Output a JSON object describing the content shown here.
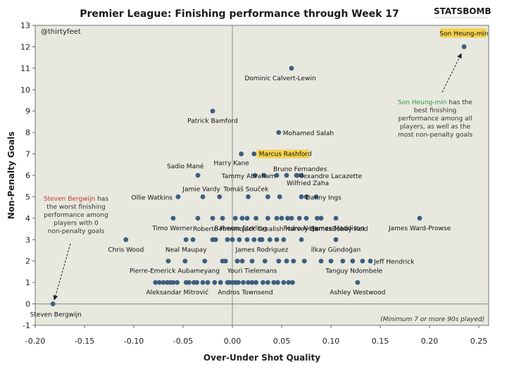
{
  "header": {
    "title": "Premier League: Finishing performance through Week 17",
    "brand": "STATSBOMB"
  },
  "handle": "@thirtyfeet",
  "footnote": "(Minimum 7 or more 90s played)",
  "colors": {
    "background": "#e8e8df",
    "point": "#3d5e80",
    "highlight": "#f5d24c",
    "good_name": "#2e9b4a",
    "bad_name": "#c0392b"
  },
  "annotations": {
    "best": {
      "name": "Son Heung-min",
      "rest": [
        " has the",
        "best finishing",
        "performance among all",
        "players, as well as the",
        "most non-penalty goals"
      ]
    },
    "worst": {
      "name": "Steven Bergwijn",
      "rest": [
        " has",
        "the worst finishing",
        "performance among",
        "players with 0",
        "non-penalty goals"
      ]
    }
  },
  "chart_data": {
    "type": "scatter",
    "xlabel": "Over-Under Shot Quality",
    "ylabel": "Non-Penalty Goals",
    "xlim": [
      -0.2,
      0.26
    ],
    "ylim": [
      -1,
      13
    ],
    "xticks": [
      "-0.20",
      "-0.15",
      "-0.10",
      "-0.05",
      "0.00",
      "0.05",
      "0.10",
      "0.15",
      "0.20",
      "0.25"
    ],
    "yticks": [
      "-1",
      "0",
      "1",
      "2",
      "3",
      "4",
      "5",
      "6",
      "7",
      "8",
      "9",
      "10",
      "11",
      "12",
      "13"
    ],
    "grid": false,
    "labeled_points": [
      {
        "label": "Son Heung-min",
        "x": 0.235,
        "y": 12
      },
      {
        "label": "Dominic Calvert-Lewin",
        "x": 0.06,
        "y": 11
      },
      {
        "label": "Patrick Bamford",
        "x": -0.02,
        "y": 9
      },
      {
        "label": "Mohamed Salah",
        "x": 0.047,
        "y": 8
      },
      {
        "label": "Marcus Rashford",
        "x": 0.022,
        "y": 7
      },
      {
        "label": "Harry Kane",
        "x": 0.009,
        "y": 7
      },
      {
        "label": "Bruno Fernandes",
        "x": 0.055,
        "y": 6
      },
      {
        "label": "Sadio Mané",
        "x": -0.035,
        "y": 6
      },
      {
        "label": "Tammy Abraham",
        "x": 0.032,
        "y": 6
      },
      {
        "label": "Alexandre Lacazette",
        "x": 0.07,
        "y": 6
      },
      {
        "label": "Wilfried Zaha",
        "x": 0.065,
        "y": 6
      },
      {
        "label": "Jamie Vardy",
        "x": -0.03,
        "y": 5
      },
      {
        "label": "Tomáš Souček",
        "x": 0.016,
        "y": 5
      },
      {
        "label": "Ollie Watkins",
        "x": -0.055,
        "y": 5
      },
      {
        "label": "Danny Ings",
        "x": 0.07,
        "y": 5
      },
      {
        "label": "Roberto Firmino",
        "x": -0.01,
        "y": 4
      },
      {
        "label": "Jack Grealish",
        "x": 0.036,
        "y": 4
      },
      {
        "label": "Harvey Barnes",
        "x": 0.068,
        "y": 4
      },
      {
        "label": "Bobby Reid",
        "x": 0.105,
        "y": 4
      },
      {
        "label": "Timo Werner",
        "x": -0.06,
        "y": 4
      },
      {
        "label": "Raheem Sterling",
        "x": 0.003,
        "y": 4
      },
      {
        "label": "Pedro Neto",
        "x": 0.056,
        "y": 4
      },
      {
        "label": "James Maddison",
        "x": 0.086,
        "y": 4
      },
      {
        "label": "James Ward-Prowse",
        "x": 0.19,
        "y": 4
      },
      {
        "label": "Chris Wood",
        "x": -0.108,
        "y": 3
      },
      {
        "label": "Neal Maupay",
        "x": -0.047,
        "y": 3
      },
      {
        "label": "James Rodriguez",
        "x": 0.03,
        "y": 3
      },
      {
        "label": "İlkay Gündoğan",
        "x": 0.105,
        "y": 3
      },
      {
        "label": "Pierre-Emerick Aubameyang",
        "x": -0.065,
        "y": 2
      },
      {
        "label": "Youri Tielemans",
        "x": 0.02,
        "y": 2
      },
      {
        "label": "Tanguy Ndombele",
        "x": 0.122,
        "y": 2
      },
      {
        "label": "Jeff Hendrick",
        "x": 0.14,
        "y": 2
      },
      {
        "label": "Aleksandar Mitrović",
        "x": -0.063,
        "y": 1
      },
      {
        "label": "Andros Townsend",
        "x": 0.016,
        "y": 1
      },
      {
        "label": "Ashley Westwood",
        "x": 0.127,
        "y": 1
      },
      {
        "label": "Steven Bergwijn",
        "x": -0.182,
        "y": 0
      }
    ],
    "unlabeled_points": [
      [
        -0.048,
        2
      ],
      [
        -0.028,
        2
      ],
      [
        -0.01,
        2
      ],
      [
        -0.007,
        2
      ],
      [
        0.005,
        2
      ],
      [
        0.01,
        2
      ],
      [
        0.033,
        2
      ],
      [
        0.047,
        2
      ],
      [
        0.055,
        2
      ],
      [
        0.062,
        2
      ],
      [
        0.073,
        2
      ],
      [
        0.09,
        2
      ],
      [
        0.1,
        2
      ],
      [
        0.112,
        2
      ],
      [
        0.132,
        2
      ],
      [
        -0.078,
        1
      ],
      [
        -0.074,
        1
      ],
      [
        -0.07,
        1
      ],
      [
        -0.066,
        1
      ],
      [
        -0.06,
        1
      ],
      [
        -0.056,
        1
      ],
      [
        -0.047,
        1
      ],
      [
        -0.044,
        1
      ],
      [
        -0.039,
        1
      ],
      [
        -0.036,
        1
      ],
      [
        -0.03,
        1
      ],
      [
        -0.025,
        1
      ],
      [
        -0.018,
        1
      ],
      [
        -0.012,
        1
      ],
      [
        -0.005,
        1
      ],
      [
        -0.003,
        1
      ],
      [
        0.0,
        1
      ],
      [
        0.003,
        1
      ],
      [
        0.006,
        1
      ],
      [
        0.011,
        1
      ],
      [
        0.02,
        1
      ],
      [
        0.024,
        1
      ],
      [
        0.031,
        1
      ],
      [
        0.036,
        1
      ],
      [
        0.042,
        1
      ],
      [
        0.046,
        1
      ],
      [
        0.052,
        1
      ],
      [
        0.057,
        1
      ],
      [
        0.061,
        1
      ],
      [
        -0.04,
        3
      ],
      [
        -0.02,
        3
      ],
      [
        -0.017,
        3
      ],
      [
        -0.005,
        3
      ],
      [
        0.0,
        3
      ],
      [
        0.007,
        3
      ],
      [
        0.015,
        3
      ],
      [
        0.022,
        3
      ],
      [
        0.028,
        3
      ],
      [
        0.038,
        3
      ],
      [
        0.045,
        3
      ],
      [
        0.052,
        3
      ],
      [
        0.07,
        3
      ],
      [
        -0.035,
        4
      ],
      [
        -0.02,
        4
      ],
      [
        0.01,
        4
      ],
      [
        0.015,
        4
      ],
      [
        0.024,
        4
      ],
      [
        0.045,
        4
      ],
      [
        0.05,
        4
      ],
      [
        0.06,
        4
      ],
      [
        0.075,
        4
      ],
      [
        0.09,
        4
      ],
      [
        -0.013,
        5
      ],
      [
        0.036,
        5
      ],
      [
        0.048,
        5
      ],
      [
        0.075,
        5
      ],
      [
        0.085,
        5
      ],
      [
        0.023,
        6
      ],
      [
        0.045,
        6
      ]
    ]
  }
}
